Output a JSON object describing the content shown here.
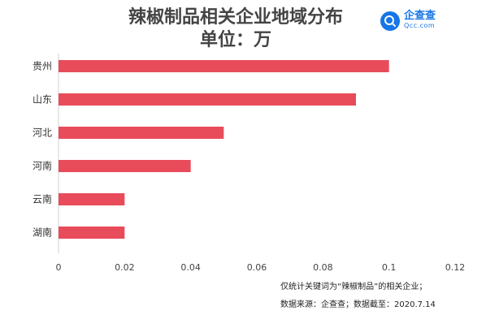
{
  "header": {
    "title": "辣椒制品相关企业地域分布",
    "subtitle": "单位：万"
  },
  "logo": {
    "name": "企查查",
    "url": "Qcc.com",
    "color": "#1676e8"
  },
  "notes": {
    "line1": "仅统计关键词为“辣椒制品”的相关企业；",
    "line2": "数据来源：企查查；数据截至：2020.7.14"
  },
  "chart_data": {
    "type": "bar",
    "orientation": "horizontal",
    "categories": [
      "贵州",
      "山东",
      "河北",
      "河南",
      "云南",
      "湖南"
    ],
    "values": [
      0.1,
      0.09,
      0.05,
      0.04,
      0.02,
      0.02
    ],
    "xlim": [
      0,
      0.12
    ],
    "xticks": [
      "0",
      "0.02",
      "0.04",
      "0.06",
      "0.08",
      "0.1",
      "0.12"
    ],
    "bar_color": "#e84c5b",
    "grid": false,
    "legend": "none"
  }
}
